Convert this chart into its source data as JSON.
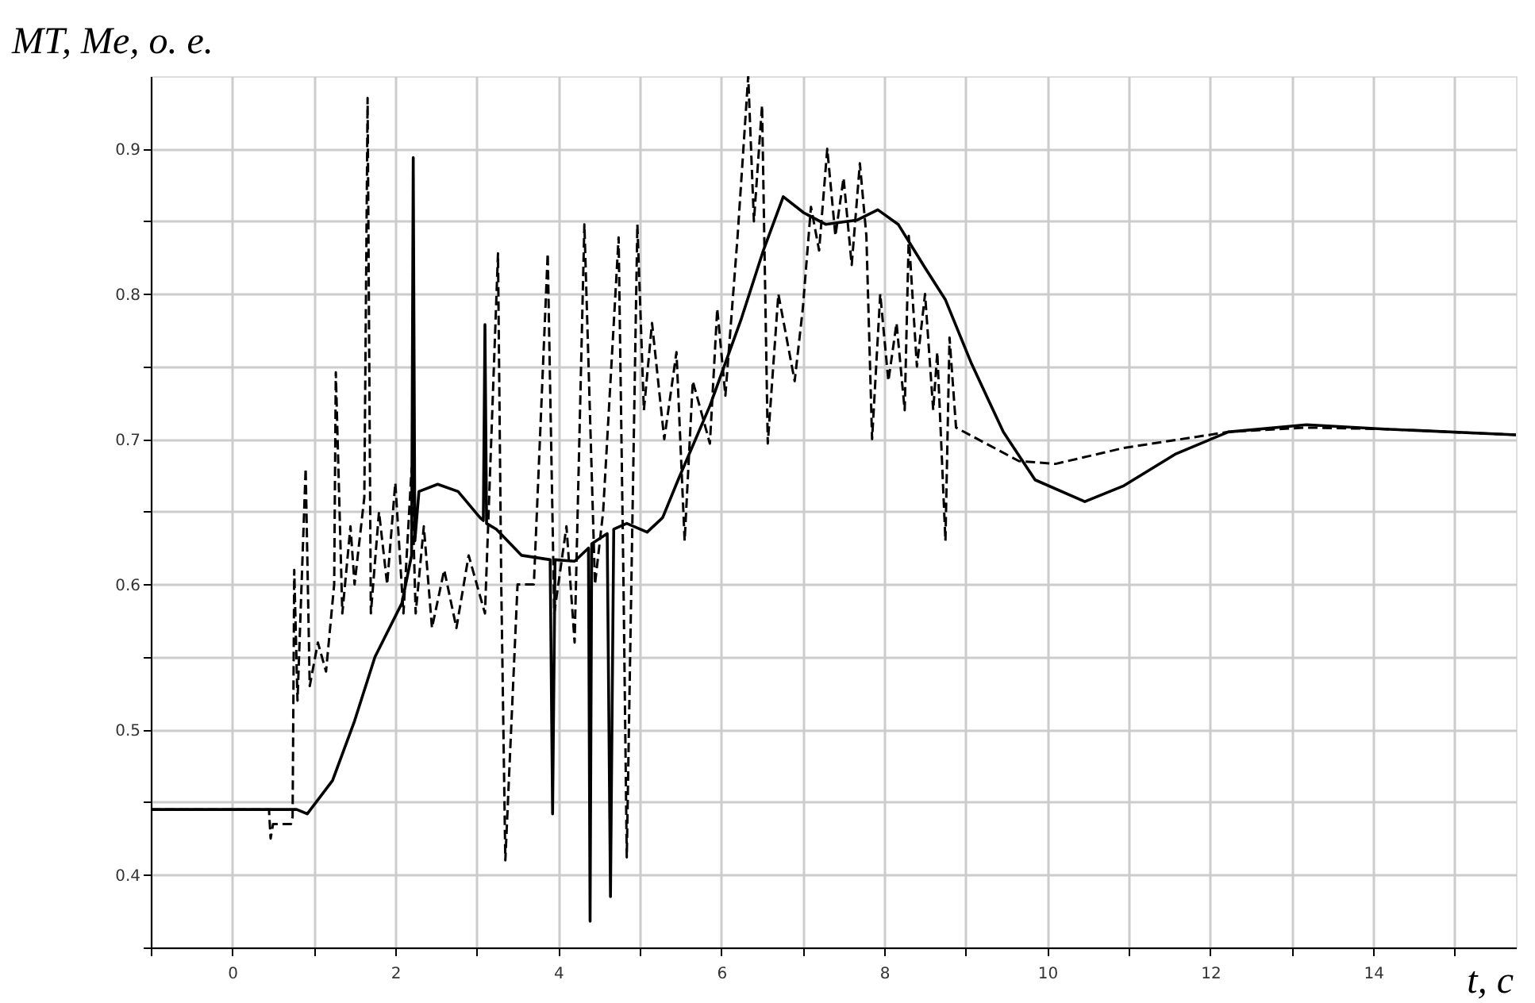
{
  "chart_data": {
    "type": "line",
    "xlabel": "t, с",
    "ylabel": "MT, Me, о. е.",
    "xlim": [
      -1,
      15.75
    ],
    "ylim": [
      0.35,
      0.95
    ],
    "xticks": [
      {
        "value": -1,
        "label": null
      },
      0,
      {
        "value": 1,
        "label": null
      },
      2,
      {
        "value": 3,
        "label": null
      },
      4,
      {
        "value": 5,
        "label": null
      },
      6,
      {
        "value": 7,
        "label": null
      },
      8,
      {
        "value": 9,
        "label": null
      },
      10,
      {
        "value": 11,
        "label": null
      },
      12,
      {
        "value": 13,
        "label": null
      },
      14,
      {
        "value": 15,
        "label": null
      }
    ],
    "yticks": [
      {
        "value": 0.35,
        "label": null
      },
      0.4,
      {
        "value": 0.45,
        "label": null
      },
      0.5,
      {
        "value": 0.55,
        "label": null
      },
      0.6,
      {
        "value": 0.65,
        "label": null
      },
      0.7,
      {
        "value": 0.75,
        "label": null
      },
      0.8,
      {
        "value": 0.85,
        "label": null
      },
      0.9
    ],
    "grid": true,
    "series": [
      {
        "color": "#000000",
        "line_style": "solid",
        "x": [
          -1,
          0.79,
          0.92,
          1.23,
          1.5,
          1.75,
          2.08,
          2.2,
          2.22,
          2.24,
          2.29,
          2.52,
          2.77,
          3.04,
          3.08,
          3.1,
          3.12,
          3.24,
          3.55,
          3.9,
          3.93,
          3.96,
          4.2,
          4.37,
          4.39,
          4.41,
          4.6,
          4.64,
          4.68,
          4.84,
          5.09,
          5.28,
          5.47,
          5.86,
          6.24,
          6.51,
          6.76,
          7.01,
          7.28,
          7.67,
          7.92,
          8.17,
          8.5,
          8.75,
          9.07,
          9.46,
          9.85,
          10.46,
          10.94,
          11.58,
          12.22,
          13.18,
          14.14,
          15.75
        ],
        "values": [
          0.445,
          0.445,
          0.442,
          0.465,
          0.506,
          0.55,
          0.587,
          0.62,
          0.894,
          0.63,
          0.664,
          0.669,
          0.664,
          0.646,
          0.644,
          0.779,
          0.642,
          0.638,
          0.62,
          0.617,
          0.442,
          0.617,
          0.616,
          0.625,
          0.368,
          0.628,
          0.635,
          0.385,
          0.638,
          0.642,
          0.636,
          0.646,
          0.672,
          0.723,
          0.782,
          0.829,
          0.867,
          0.856,
          0.848,
          0.851,
          0.858,
          0.848,
          0.818,
          0.796,
          0.752,
          0.705,
          0.672,
          0.657,
          0.668,
          0.69,
          0.705,
          0.71,
          0.707,
          0.703
        ]
      },
      {
        "color": "#000000",
        "line_style": "dashed",
        "x": [
          -1,
          0.45,
          0.47,
          0.5,
          0.72,
          0.74,
          0.76,
          0.8,
          0.9,
          0.95,
          1.05,
          1.15,
          1.25,
          1.27,
          1.35,
          1.45,
          1.5,
          1.62,
          1.66,
          1.7,
          1.8,
          1.9,
          2.0,
          2.1,
          2.2,
          2.25,
          2.35,
          2.45,
          2.6,
          2.75,
          2.9,
          3.0,
          3.1,
          3.26,
          3.3,
          3.35,
          3.5,
          3.7,
          3.87,
          3.95,
          4.1,
          4.2,
          4.32,
          4.45,
          4.55,
          4.74,
          4.8,
          4.84,
          4.97,
          5.05,
          5.15,
          5.3,
          5.45,
          5.55,
          5.65,
          5.86,
          5.95,
          6.05,
          6.2,
          6.33,
          6.4,
          6.5,
          6.57,
          6.7,
          6.9,
          7.0,
          7.1,
          7.2,
          7.3,
          7.4,
          7.5,
          7.6,
          7.7,
          7.78,
          7.85,
          7.95,
          8.05,
          8.15,
          8.25,
          8.3,
          8.4,
          8.5,
          8.6,
          8.65,
          8.75,
          8.8,
          8.88,
          9.65,
          10.1,
          10.94,
          12.22,
          13.18,
          14.14,
          15.75
        ],
        "values": [
          0.445,
          0.445,
          0.425,
          0.435,
          0.435,
          0.44,
          0.61,
          0.52,
          0.68,
          0.53,
          0.56,
          0.54,
          0.6,
          0.746,
          0.58,
          0.64,
          0.6,
          0.66,
          0.935,
          0.58,
          0.65,
          0.6,
          0.67,
          0.58,
          0.68,
          0.58,
          0.64,
          0.57,
          0.61,
          0.57,
          0.62,
          0.6,
          0.58,
          0.828,
          0.6,
          0.41,
          0.6,
          0.6,
          0.828,
          0.58,
          0.64,
          0.56,
          0.848,
          0.6,
          0.65,
          0.839,
          0.6,
          0.412,
          0.848,
          0.72,
          0.78,
          0.7,
          0.76,
          0.63,
          0.74,
          0.697,
          0.79,
          0.73,
          0.84,
          0.95,
          0.85,
          0.93,
          0.697,
          0.8,
          0.74,
          0.79,
          0.86,
          0.83,
          0.9,
          0.84,
          0.88,
          0.82,
          0.89,
          0.84,
          0.7,
          0.8,
          0.74,
          0.78,
          0.72,
          0.84,
          0.75,
          0.8,
          0.72,
          0.76,
          0.63,
          0.77,
          0.708,
          0.685,
          0.683,
          0.694,
          0.705,
          0.708,
          0.707,
          0.703
        ]
      }
    ]
  }
}
